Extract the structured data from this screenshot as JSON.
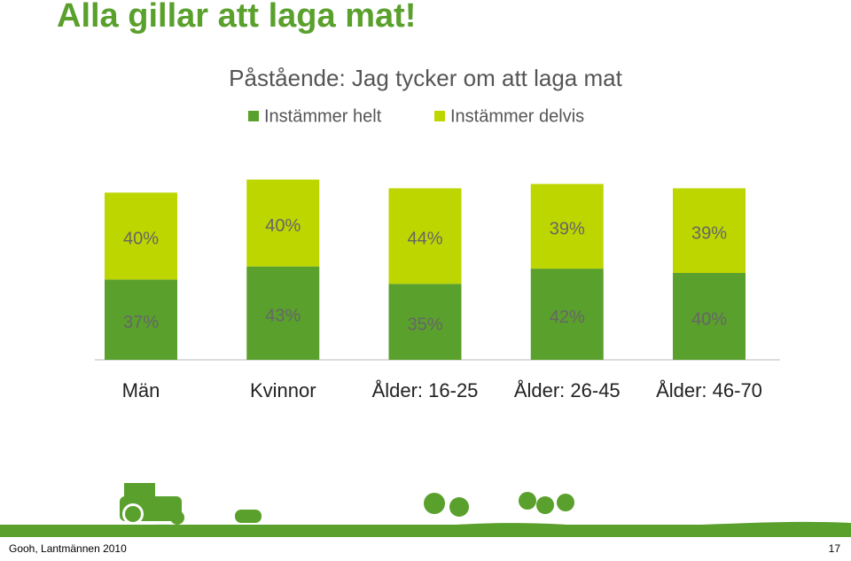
{
  "slide": {
    "title": "Alla gillar att laga mat!",
    "footer": "Gooh, Lantmännen 2010",
    "page_number": "17"
  },
  "chart_data": {
    "type": "stacked_bar",
    "title": "Påstående: Jag tycker om att laga mat",
    "categories": [
      "Män",
      "Kvinnor",
      "Ålder: 16-25",
      "Ålder: 26-45",
      "Ålder: 46-70"
    ],
    "series": [
      {
        "name": "Instämmer helt",
        "color": "#5aa02c",
        "values": [
          37,
          43,
          35,
          42,
          40
        ],
        "value_labels": [
          "37%",
          "43%",
          "35%",
          "42%",
          "40%"
        ]
      },
      {
        "name": "Instämmer delvis",
        "color": "#bdd600",
        "values": [
          40,
          40,
          44,
          39,
          39
        ],
        "value_labels": [
          "40%",
          "40%",
          "44%",
          "39%",
          "39%"
        ]
      }
    ]
  }
}
